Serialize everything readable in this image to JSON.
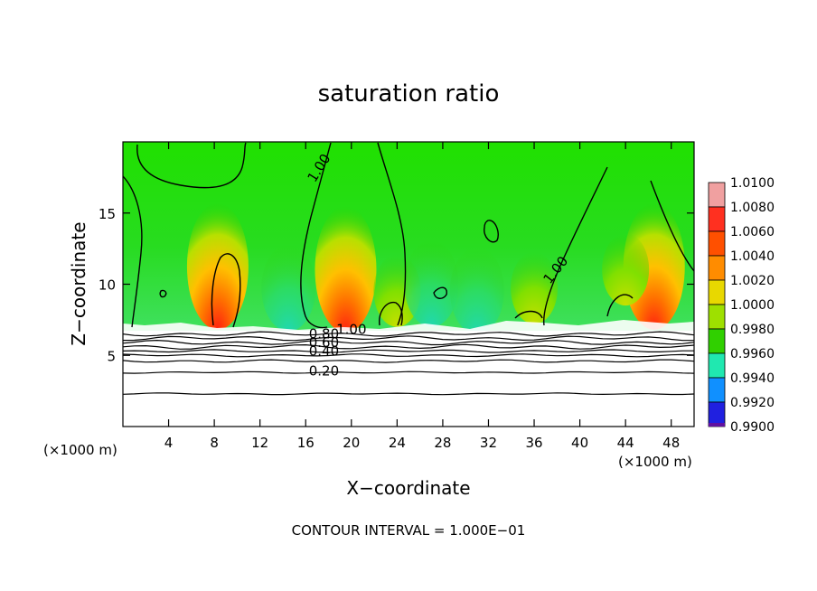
{
  "chart_data": {
    "type": "heatmap",
    "title": "saturation ratio",
    "xlabel": "X−coordinate",
    "ylabel": "Z−coordinate",
    "x_unit": "(×1000 m)",
    "y_unit": "(×1000 m)",
    "xlim": [
      0,
      50
    ],
    "ylim": [
      0,
      20
    ],
    "x_ticks": [
      4,
      8,
      12,
      16,
      20,
      24,
      28,
      32,
      36,
      40,
      44,
      48
    ],
    "y_ticks": [
      5,
      10,
      15
    ],
    "footer": "CONTOUR INTERVAL = 1.000E−01",
    "colorbar": {
      "labels": [
        "1.0100",
        "1.0080",
        "1.0060",
        "1.0040",
        "1.0020",
        "1.0000",
        "0.9980",
        "0.9960",
        "0.9940",
        "0.9920",
        "0.9900"
      ],
      "colors": [
        "#f0a0a0",
        "#ff3020",
        "#ff5000",
        "#ff8c00",
        "#e8d800",
        "#9ee000",
        "#30d000",
        "#20e8b0",
        "#1090ff",
        "#2020e0",
        "#6010a0"
      ]
    },
    "contour_labels": [
      {
        "text": "1.00",
        "x": 17.5,
        "z": 18.0,
        "angle": -58
      },
      {
        "text": "1.00",
        "x": 38.2,
        "z": 10.8,
        "angle": -52
      },
      {
        "text": "1.00",
        "x": 20.0,
        "z": 6.5,
        "angle": 0
      },
      {
        "text": "0.80",
        "x": 17.6,
        "z": 6.2,
        "angle": 0
      },
      {
        "text": "0.60",
        "x": 17.6,
        "z": 5.6,
        "angle": 0
      },
      {
        "text": "0.40",
        "x": 17.6,
        "z": 5.0,
        "angle": 0
      },
      {
        "text": "0.20",
        "x": 17.6,
        "z": 3.6,
        "angle": 0
      }
    ],
    "layer_lines_z": [
      6.5,
      6.2,
      5.9,
      5.6,
      5.3,
      5.0,
      4.6,
      3.8,
      2.3
    ],
    "cloud_top_z": 7.0,
    "hotspots": [
      {
        "x": 19.5,
        "z": 6.6,
        "value": 1.006
      },
      {
        "x": 8.3,
        "z": 6.8,
        "value": 1.006
      },
      {
        "x": 46.5,
        "z": 6.8,
        "value": 1.005
      },
      {
        "x": 36.0,
        "z": 7.2,
        "value": 1.002
      },
      {
        "x": 44.0,
        "z": 8.5,
        "value": 1.0015
      },
      {
        "x": 24.0,
        "z": 7.0,
        "value": 1.001
      }
    ],
    "coolspots": [
      {
        "x": 14.5,
        "z": 7.2,
        "value": 0.997
      },
      {
        "x": 27.0,
        "z": 7.5,
        "value": 0.9975
      },
      {
        "x": 31.0,
        "z": 7.0,
        "value": 0.998
      }
    ]
  }
}
